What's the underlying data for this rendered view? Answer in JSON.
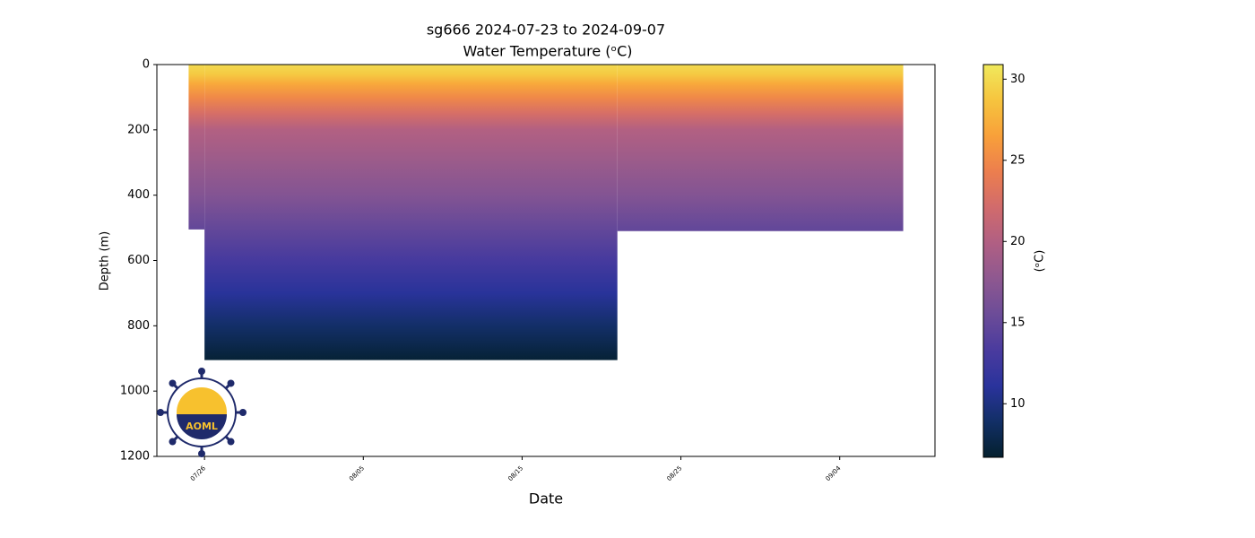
{
  "chart_data": {
    "type": "section",
    "title": "sg666 2024-07-23 to 2024-09-07",
    "subtitle": "Water Temperature (ᵒC)",
    "x_label": "Date",
    "y_label": "Depth (m)",
    "colorbar_label": "(ᵒC)",
    "logo_text": "AOML",
    "xlim": [
      "07/23",
      "09/10"
    ],
    "xticks": [
      "07/26",
      "08/05",
      "08/15",
      "08/25",
      "09/04"
    ],
    "ylim": [
      0,
      1200
    ],
    "y_inverted": true,
    "yticks": [
      0,
      200,
      400,
      600,
      800,
      1000,
      1200
    ],
    "clim": [
      6.7,
      30.9
    ],
    "cticks": [
      10,
      15,
      20,
      25,
      30
    ],
    "colormap": [
      "#04202e",
      "#122f66",
      "#2a339c",
      "#4a3b9e",
      "#6c4c98",
      "#8e5890",
      "#b05f83",
      "#d16b6c",
      "#ec7e4e",
      "#f8a03a",
      "#f6c43e",
      "#f0e95c"
    ],
    "segments": [
      {
        "start": "07/25",
        "end": "07/26",
        "depth": 505
      },
      {
        "start": "07/26",
        "end": "08/21",
        "depth": 905
      },
      {
        "start": "08/21",
        "end": "09/08",
        "depth": 510
      }
    ],
    "profile": {
      "depth": [
        0,
        30,
        60,
        100,
        150,
        200,
        300,
        400,
        500,
        600,
        700,
        800,
        905
      ],
      "temperature": [
        30,
        29,
        27,
        25,
        22.5,
        20,
        18.5,
        17,
        15,
        13,
        11,
        9,
        7
      ]
    }
  }
}
